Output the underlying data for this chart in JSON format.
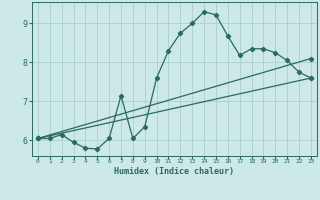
{
  "title": "",
  "xlabel": "Humidex (Indice chaleur)",
  "bg_color": "#cce8e8",
  "grid_color": "#aacece",
  "line_color": "#2a6b5a",
  "xlim": [
    -0.5,
    23.5
  ],
  "ylim": [
    5.6,
    9.55
  ],
  "xticks": [
    0,
    1,
    2,
    3,
    4,
    5,
    6,
    7,
    8,
    9,
    10,
    11,
    12,
    13,
    14,
    15,
    16,
    17,
    18,
    19,
    20,
    21,
    22,
    23
  ],
  "yticks": [
    6,
    7,
    8,
    9
  ],
  "curve1_x": [
    0,
    1,
    2,
    3,
    4,
    5,
    6,
    7,
    8,
    9,
    10,
    11,
    12,
    13,
    14,
    15,
    16,
    17,
    18,
    19,
    20,
    21,
    22,
    23
  ],
  "curve1_y": [
    6.05,
    6.05,
    6.15,
    5.95,
    5.8,
    5.78,
    6.05,
    7.15,
    6.05,
    6.35,
    7.6,
    8.3,
    8.75,
    9.0,
    9.3,
    9.22,
    8.68,
    8.18,
    8.35,
    8.35,
    8.25,
    8.05,
    7.75,
    7.6
  ],
  "curve2_x": [
    0,
    23
  ],
  "curve2_y": [
    6.05,
    7.6
  ],
  "curve3_x": [
    0,
    23
  ],
  "curve3_y": [
    6.05,
    8.1
  ],
  "marker": "D",
  "markersize": 2.2,
  "linewidth": 0.9
}
